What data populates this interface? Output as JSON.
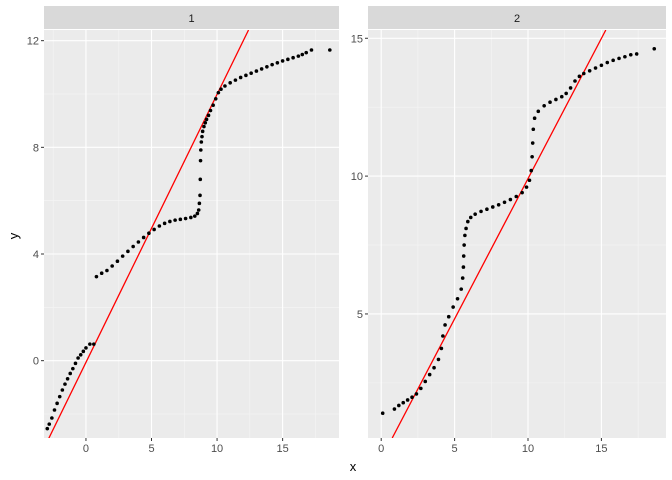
{
  "chart_data": {
    "type": "scatter",
    "xlabel": "x",
    "ylabel": "y",
    "grid": true,
    "legend": "none",
    "colors": {
      "panel_bg": "#ebebeb",
      "strip_bg": "#d9d9d9",
      "grid_major": "#ffffff",
      "points": "#000000",
      "line": "#ff0000"
    },
    "panels": [
      {
        "strip": "1",
        "xlim": [
          -3.2,
          19.3
        ],
        "ylim": [
          -2.9,
          12.4
        ],
        "xticks": [
          0,
          5,
          10,
          15
        ],
        "xtick_labels": [
          "0",
          "5",
          "10",
          "15"
        ],
        "yticks": [
          0,
          4,
          8,
          12
        ],
        "ytick_labels": [
          "0",
          "4",
          "8",
          "12"
        ],
        "line": {
          "x1": -3.2,
          "y1": -3.28,
          "x2": 12.4,
          "y2": 12.4
        },
        "points": [
          [
            -2.95,
            -2.55
          ],
          [
            -2.8,
            -2.38
          ],
          [
            -2.6,
            -2.15
          ],
          [
            -2.4,
            -1.85
          ],
          [
            -2.2,
            -1.6
          ],
          [
            -2.0,
            -1.35
          ],
          [
            -1.8,
            -1.1
          ],
          [
            -1.6,
            -0.88
          ],
          [
            -1.4,
            -0.68
          ],
          [
            -1.2,
            -0.48
          ],
          [
            -1.0,
            -0.3
          ],
          [
            -0.8,
            -0.1
          ],
          [
            -0.6,
            0.1
          ],
          [
            -0.4,
            0.22
          ],
          [
            -0.2,
            0.35
          ],
          [
            0.0,
            0.48
          ],
          [
            0.3,
            0.62
          ],
          [
            0.6,
            0.62
          ],
          [
            0.8,
            3.15
          ],
          [
            1.2,
            3.28
          ],
          [
            1.6,
            3.38
          ],
          [
            2.0,
            3.55
          ],
          [
            2.4,
            3.73
          ],
          [
            2.8,
            3.92
          ],
          [
            3.2,
            4.1
          ],
          [
            3.6,
            4.28
          ],
          [
            4.0,
            4.45
          ],
          [
            4.4,
            4.62
          ],
          [
            4.8,
            4.78
          ],
          [
            5.2,
            4.92
          ],
          [
            5.6,
            5.05
          ],
          [
            6.0,
            5.15
          ],
          [
            6.4,
            5.22
          ],
          [
            6.8,
            5.27
          ],
          [
            7.2,
            5.3
          ],
          [
            7.6,
            5.33
          ],
          [
            8.0,
            5.37
          ],
          [
            8.3,
            5.42
          ],
          [
            8.5,
            5.52
          ],
          [
            8.6,
            5.65
          ],
          [
            8.65,
            5.9
          ],
          [
            8.7,
            6.2
          ],
          [
            8.72,
            6.8
          ],
          [
            8.74,
            7.5
          ],
          [
            8.76,
            7.9
          ],
          [
            8.8,
            8.2
          ],
          [
            8.85,
            8.4
          ],
          [
            8.9,
            8.6
          ],
          [
            9.0,
            8.78
          ],
          [
            9.1,
            8.92
          ],
          [
            9.2,
            9.05
          ],
          [
            9.35,
            9.2
          ],
          [
            9.5,
            9.38
          ],
          [
            9.7,
            9.58
          ],
          [
            9.9,
            9.82
          ],
          [
            10.1,
            10.05
          ],
          [
            10.3,
            10.18
          ],
          [
            10.6,
            10.3
          ],
          [
            11.0,
            10.42
          ],
          [
            11.4,
            10.52
          ],
          [
            11.8,
            10.62
          ],
          [
            12.2,
            10.7
          ],
          [
            12.6,
            10.78
          ],
          [
            13.0,
            10.86
          ],
          [
            13.4,
            10.94
          ],
          [
            13.8,
            11.02
          ],
          [
            14.2,
            11.1
          ],
          [
            14.6,
            11.17
          ],
          [
            15.0,
            11.24
          ],
          [
            15.4,
            11.3
          ],
          [
            15.8,
            11.36
          ],
          [
            16.2,
            11.42
          ],
          [
            16.5,
            11.48
          ],
          [
            16.8,
            11.55
          ],
          [
            17.2,
            11.65
          ],
          [
            18.6,
            11.65
          ]
        ]
      },
      {
        "strip": "2",
        "xlim": [
          -0.9,
          19.4
        ],
        "ylim": [
          0.5,
          15.3
        ],
        "xticks": [
          0,
          5,
          10,
          15
        ],
        "xtick_labels": [
          "0",
          "5",
          "10",
          "15"
        ],
        "yticks": [
          5,
          10,
          15
        ],
        "ytick_labels": [
          "5",
          "10",
          "15"
        ],
        "line": {
          "x1": 0.75,
          "y1": 0.5,
          "x2": 15.3,
          "y2": 15.3
        },
        "points": [
          [
            0.1,
            1.4
          ],
          [
            0.9,
            1.55
          ],
          [
            1.2,
            1.68
          ],
          [
            1.5,
            1.78
          ],
          [
            1.8,
            1.88
          ],
          [
            2.1,
            1.98
          ],
          [
            2.4,
            2.1
          ],
          [
            2.7,
            2.3
          ],
          [
            3.0,
            2.55
          ],
          [
            3.3,
            2.8
          ],
          [
            3.6,
            3.05
          ],
          [
            3.9,
            3.35
          ],
          [
            4.1,
            3.75
          ],
          [
            4.2,
            4.2
          ],
          [
            4.35,
            4.6
          ],
          [
            4.6,
            4.9
          ],
          [
            4.9,
            5.25
          ],
          [
            5.2,
            5.55
          ],
          [
            5.45,
            5.9
          ],
          [
            5.55,
            6.3
          ],
          [
            5.6,
            6.7
          ],
          [
            5.62,
            7.1
          ],
          [
            5.65,
            7.5
          ],
          [
            5.7,
            7.85
          ],
          [
            5.78,
            8.1
          ],
          [
            5.9,
            8.35
          ],
          [
            6.1,
            8.5
          ],
          [
            6.4,
            8.62
          ],
          [
            6.8,
            8.72
          ],
          [
            7.2,
            8.8
          ],
          [
            7.6,
            8.88
          ],
          [
            8.0,
            8.96
          ],
          [
            8.4,
            9.05
          ],
          [
            8.8,
            9.15
          ],
          [
            9.2,
            9.26
          ],
          [
            9.6,
            9.4
          ],
          [
            9.9,
            9.6
          ],
          [
            10.1,
            9.85
          ],
          [
            10.22,
            10.2
          ],
          [
            10.28,
            10.7
          ],
          [
            10.32,
            11.2
          ],
          [
            10.36,
            11.7
          ],
          [
            10.45,
            12.1
          ],
          [
            10.7,
            12.35
          ],
          [
            11.1,
            12.55
          ],
          [
            11.5,
            12.68
          ],
          [
            11.9,
            12.78
          ],
          [
            12.3,
            12.88
          ],
          [
            12.6,
            13.0
          ],
          [
            12.9,
            13.2
          ],
          [
            13.2,
            13.45
          ],
          [
            13.5,
            13.62
          ],
          [
            13.8,
            13.72
          ],
          [
            14.2,
            13.82
          ],
          [
            14.6,
            13.92
          ],
          [
            15.0,
            14.02
          ],
          [
            15.4,
            14.12
          ],
          [
            15.8,
            14.2
          ],
          [
            16.2,
            14.27
          ],
          [
            16.6,
            14.33
          ],
          [
            17.0,
            14.4
          ],
          [
            17.4,
            14.43
          ],
          [
            18.6,
            14.62
          ]
        ]
      }
    ]
  }
}
